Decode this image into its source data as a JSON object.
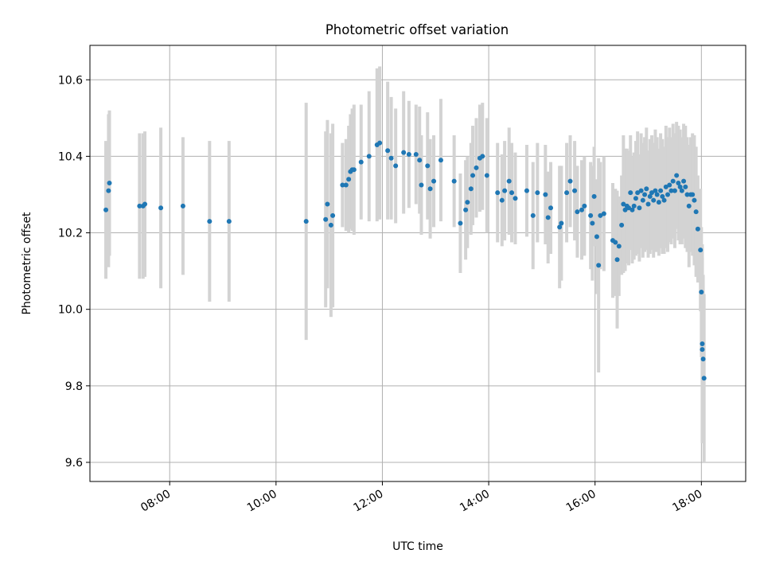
{
  "chart_data": {
    "type": "scatter",
    "title": "Photometric offset variation",
    "xlabel": "UTC time",
    "ylabel": "Photometric offset",
    "grid": true,
    "xlim": [
      "06:30",
      "18:50"
    ],
    "ylim": [
      9.55,
      10.69
    ],
    "xticks": [
      "08:00",
      "10:00",
      "12:00",
      "14:00",
      "16:00",
      "18:00"
    ],
    "yticks": [
      "9.6",
      "9.8",
      "10.0",
      "10.2",
      "10.4",
      "10.6"
    ],
    "colors": {
      "marker": "#1f77b4",
      "errorbar": "#d3d3d3",
      "grid": "#b0b0b0"
    },
    "series": [
      {
        "points": [
          {
            "t": "06:48",
            "y": 10.26,
            "err": 0.18
          },
          {
            "t": "06:51",
            "y": 10.31,
            "err": 0.2
          },
          {
            "t": "06:52",
            "y": 10.33,
            "err": 0.19
          },
          {
            "t": "07:26",
            "y": 10.27,
            "err": 0.19
          },
          {
            "t": "07:30",
            "y": 10.27,
            "err": 0.19
          },
          {
            "t": "07:32",
            "y": 10.275,
            "err": 0.19
          },
          {
            "t": "07:50",
            "y": 10.265,
            "err": 0.21
          },
          {
            "t": "08:15",
            "y": 10.27,
            "err": 0.18
          },
          {
            "t": "08:45",
            "y": 10.23,
            "err": 0.21
          },
          {
            "t": "09:07",
            "y": 10.23,
            "err": 0.21
          },
          {
            "t": "10:34",
            "y": 10.23,
            "err": 0.31
          },
          {
            "t": "10:56",
            "y": 10.235,
            "err": 0.23
          },
          {
            "t": "10:58",
            "y": 10.275,
            "err": 0.22
          },
          {
            "t": "11:02",
            "y": 10.22,
            "err": 0.24
          },
          {
            "t": "11:04",
            "y": 10.245,
            "err": 0.24
          },
          {
            "t": "11:15",
            "y": 10.325,
            "err": 0.11
          },
          {
            "t": "11:19",
            "y": 10.325,
            "err": 0.12
          },
          {
            "t": "11:22",
            "y": 10.34,
            "err": 0.14
          },
          {
            "t": "11:24",
            "y": 10.36,
            "err": 0.15
          },
          {
            "t": "11:26",
            "y": 10.365,
            "err": 0.16
          },
          {
            "t": "11:28",
            "y": 10.365,
            "err": 0.17
          },
          {
            "t": "11:36",
            "y": 10.385,
            "err": 0.15
          },
          {
            "t": "11:45",
            "y": 10.4,
            "err": 0.17
          },
          {
            "t": "11:54",
            "y": 10.43,
            "err": 0.2
          },
          {
            "t": "11:57",
            "y": 10.435,
            "err": 0.2
          },
          {
            "t": "12:06",
            "y": 10.415,
            "err": 0.18
          },
          {
            "t": "12:10",
            "y": 10.395,
            "err": 0.16
          },
          {
            "t": "12:15",
            "y": 10.375,
            "err": 0.15
          },
          {
            "t": "12:24",
            "y": 10.41,
            "err": 0.16
          },
          {
            "t": "12:30",
            "y": 10.405,
            "err": 0.14
          },
          {
            "t": "12:38",
            "y": 10.405,
            "err": 0.13
          },
          {
            "t": "12:42",
            "y": 10.39,
            "err": 0.14
          },
          {
            "t": "12:44",
            "y": 10.325,
            "err": 0.13
          },
          {
            "t": "12:51",
            "y": 10.375,
            "err": 0.14
          },
          {
            "t": "12:54",
            "y": 10.315,
            "err": 0.13
          },
          {
            "t": "12:58",
            "y": 10.335,
            "err": 0.12
          },
          {
            "t": "13:06",
            "y": 10.39,
            "err": 0.16
          },
          {
            "t": "13:21",
            "y": 10.335,
            "err": 0.12
          },
          {
            "t": "13:28",
            "y": 10.225,
            "err": 0.13
          },
          {
            "t": "13:34",
            "y": 10.26,
            "err": 0.13
          },
          {
            "t": "13:36",
            "y": 10.28,
            "err": 0.12
          },
          {
            "t": "13:40",
            "y": 10.315,
            "err": 0.12
          },
          {
            "t": "13:42",
            "y": 10.35,
            "err": 0.13
          },
          {
            "t": "13:46",
            "y": 10.37,
            "err": 0.13
          },
          {
            "t": "13:50",
            "y": 10.395,
            "err": 0.14
          },
          {
            "t": "13:53",
            "y": 10.4,
            "err": 0.14
          },
          {
            "t": "13:58",
            "y": 10.35,
            "err": 0.15
          },
          {
            "t": "14:10",
            "y": 10.305,
            "err": 0.13
          },
          {
            "t": "14:15",
            "y": 10.285,
            "err": 0.12
          },
          {
            "t": "14:18",
            "y": 10.31,
            "err": 0.13
          },
          {
            "t": "14:23",
            "y": 10.335,
            "err": 0.14
          },
          {
            "t": "14:26",
            "y": 10.305,
            "err": 0.13
          },
          {
            "t": "14:30",
            "y": 10.29,
            "err": 0.12
          },
          {
            "t": "14:43",
            "y": 10.31,
            "err": 0.12
          },
          {
            "t": "14:50",
            "y": 10.245,
            "err": 0.14
          },
          {
            "t": "14:55",
            "y": 10.305,
            "err": 0.13
          },
          {
            "t": "15:04",
            "y": 10.3,
            "err": 0.13
          },
          {
            "t": "15:07",
            "y": 10.24,
            "err": 0.12
          },
          {
            "t": "15:10",
            "y": 10.265,
            "err": 0.12
          },
          {
            "t": "15:20",
            "y": 10.215,
            "err": 0.16
          },
          {
            "t": "15:22",
            "y": 10.225,
            "err": 0.15
          },
          {
            "t": "15:28",
            "y": 10.305,
            "err": 0.13
          },
          {
            "t": "15:32",
            "y": 10.335,
            "err": 0.12
          },
          {
            "t": "15:37",
            "y": 10.31,
            "err": 0.13
          },
          {
            "t": "15:40",
            "y": 10.255,
            "err": 0.12
          },
          {
            "t": "15:45",
            "y": 10.26,
            "err": 0.13
          },
          {
            "t": "15:48",
            "y": 10.27,
            "err": 0.13
          },
          {
            "t": "15:55",
            "y": 10.245,
            "err": 0.14
          },
          {
            "t": "15:57",
            "y": 10.225,
            "err": 0.15
          },
          {
            "t": "15:59",
            "y": 10.295,
            "err": 0.13
          },
          {
            "t": "16:02",
            "y": 10.19,
            "err": 0.15
          },
          {
            "t": "16:04",
            "y": 10.115,
            "err": 0.28
          },
          {
            "t": "16:06",
            "y": 10.245,
            "err": 0.14
          },
          {
            "t": "16:10",
            "y": 10.25,
            "err": 0.15
          },
          {
            "t": "16:20",
            "y": 10.18,
            "err": 0.15
          },
          {
            "t": "16:23",
            "y": 10.175,
            "err": 0.14
          },
          {
            "t": "16:25",
            "y": 10.13,
            "err": 0.18
          },
          {
            "t": "16:27",
            "y": 10.165,
            "err": 0.13
          },
          {
            "t": "16:30",
            "y": 10.22,
            "err": 0.13
          },
          {
            "t": "16:32",
            "y": 10.275,
            "err": 0.18
          },
          {
            "t": "16:34",
            "y": 10.26,
            "err": 0.16
          },
          {
            "t": "16:36",
            "y": 10.27,
            "err": 0.15
          },
          {
            "t": "16:38",
            "y": 10.265,
            "err": 0.15
          },
          {
            "t": "16:40",
            "y": 10.305,
            "err": 0.15
          },
          {
            "t": "16:42",
            "y": 10.26,
            "err": 0.14
          },
          {
            "t": "16:44",
            "y": 10.27,
            "err": 0.14
          },
          {
            "t": "16:46",
            "y": 10.29,
            "err": 0.15
          },
          {
            "t": "16:48",
            "y": 10.305,
            "err": 0.16
          },
          {
            "t": "16:50",
            "y": 10.265,
            "err": 0.14
          },
          {
            "t": "16:52",
            "y": 10.31,
            "err": 0.15
          },
          {
            "t": "16:54",
            "y": 10.285,
            "err": 0.15
          },
          {
            "t": "16:56",
            "y": 10.3,
            "err": 0.15
          },
          {
            "t": "16:58",
            "y": 10.315,
            "err": 0.16
          },
          {
            "t": "17:00",
            "y": 10.275,
            "err": 0.14
          },
          {
            "t": "17:02",
            "y": 10.295,
            "err": 0.15
          },
          {
            "t": "17:04",
            "y": 10.305,
            "err": 0.15
          },
          {
            "t": "17:06",
            "y": 10.285,
            "err": 0.15
          },
          {
            "t": "17:08",
            "y": 10.31,
            "err": 0.16
          },
          {
            "t": "17:10",
            "y": 10.3,
            "err": 0.15
          },
          {
            "t": "17:12",
            "y": 10.28,
            "err": 0.14
          },
          {
            "t": "17:14",
            "y": 10.31,
            "err": 0.15
          },
          {
            "t": "17:16",
            "y": 10.295,
            "err": 0.15
          },
          {
            "t": "17:18",
            "y": 10.285,
            "err": 0.14
          },
          {
            "t": "17:20",
            "y": 10.32,
            "err": 0.16
          },
          {
            "t": "17:22",
            "y": 10.3,
            "err": 0.15
          },
          {
            "t": "17:24",
            "y": 10.325,
            "err": 0.15
          },
          {
            "t": "17:26",
            "y": 10.31,
            "err": 0.14
          },
          {
            "t": "17:28",
            "y": 10.335,
            "err": 0.15
          },
          {
            "t": "17:30",
            "y": 10.31,
            "err": 0.15
          },
          {
            "t": "17:32",
            "y": 10.35,
            "err": 0.14
          },
          {
            "t": "17:34",
            "y": 10.33,
            "err": 0.15
          },
          {
            "t": "17:36",
            "y": 10.32,
            "err": 0.15
          },
          {
            "t": "17:38",
            "y": 10.31,
            "err": 0.14
          },
          {
            "t": "17:40",
            "y": 10.335,
            "err": 0.15
          },
          {
            "t": "17:42",
            "y": 10.32,
            "err": 0.16
          },
          {
            "t": "17:44",
            "y": 10.3,
            "err": 0.15
          },
          {
            "t": "17:46",
            "y": 10.27,
            "err": 0.16
          },
          {
            "t": "17:48",
            "y": 10.3,
            "err": 0.15
          },
          {
            "t": "17:50",
            "y": 10.3,
            "err": 0.16
          },
          {
            "t": "17:52",
            "y": 10.285,
            "err": 0.17
          },
          {
            "t": "17:54",
            "y": 10.255,
            "err": 0.17
          },
          {
            "t": "17:56",
            "y": 10.21,
            "err": 0.14
          },
          {
            "t": "17:59",
            "y": 10.155,
            "err": 0.16
          },
          {
            "t": "18:00",
            "y": 10.045,
            "err": 0.17
          },
          {
            "t": "18:01",
            "y": 9.91,
            "err": 0.26
          },
          {
            "t": "18:01",
            "y": 9.895,
            "err": 0.24
          },
          {
            "t": "18:02",
            "y": 9.87,
            "err": 0.22
          },
          {
            "t": "18:03",
            "y": 9.82,
            "err": 0.22
          }
        ]
      }
    ]
  }
}
